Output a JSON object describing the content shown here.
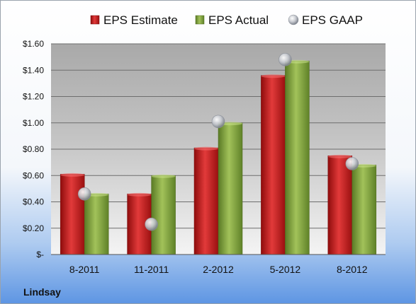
{
  "company_label": "Lindsay",
  "chart_data": {
    "type": "bar",
    "categories": [
      "8-2011",
      "11-2011",
      "2-2012",
      "5-2012",
      "8-2012"
    ],
    "series": [
      {
        "name": "EPS Estimate",
        "kind": "bar",
        "color": "#cc1f1f",
        "values": [
          0.61,
          0.46,
          0.81,
          1.36,
          0.75
        ]
      },
      {
        "name": "EPS Actual",
        "kind": "bar",
        "color": "#7fa03a",
        "values": [
          0.46,
          0.6,
          1.0,
          1.47,
          0.68
        ]
      },
      {
        "name": "EPS GAAP",
        "kind": "marker",
        "color": "#c0c4cc",
        "values": [
          0.46,
          0.23,
          1.01,
          1.48,
          0.69
        ]
      }
    ],
    "y_tick_labels": [
      "$-",
      "$0.20",
      "$0.40",
      "$0.60",
      "$0.80",
      "$1.00",
      "$1.20",
      "$1.40",
      "$1.60"
    ],
    "ylim": [
      0,
      1.6
    ],
    "grid": true,
    "legend_position": "top"
  }
}
